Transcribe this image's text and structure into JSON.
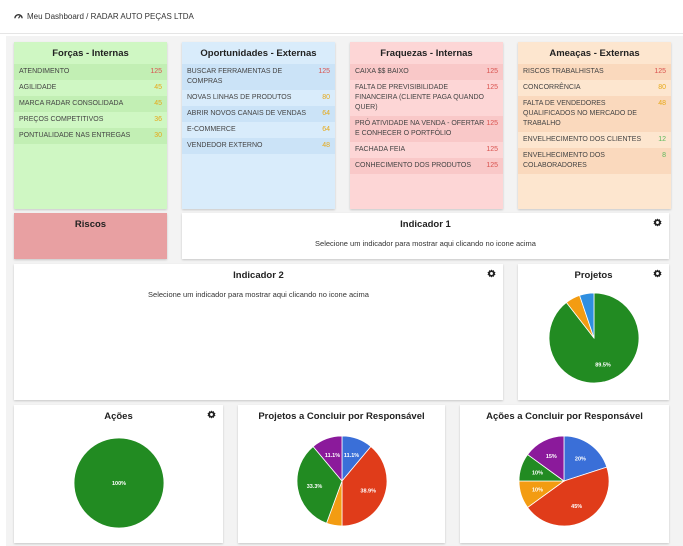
{
  "breadcrumb": {
    "text": "Meu Dashboard / RADAR AUTO PEÇAS LTDA"
  },
  "colors": {
    "low": "#e6a817",
    "mid": "#e6a817",
    "high": "#d9534f",
    "green": "#5cb85c",
    "pie_green": "#228b22",
    "pie_blue": "#3a6fd8",
    "pie_orange": "#f39c12",
    "pie_red": "#e03c1a",
    "pie_purple": "#8b1a9b",
    "pie_lightblue": "#2f8fe0"
  },
  "swot": {
    "strengths": {
      "title": "Forças - Internas",
      "items": [
        {
          "label": "ATENDIMENTO",
          "value": "125",
          "level": "high"
        },
        {
          "label": "AGILIDADE",
          "value": "45",
          "level": "mid"
        },
        {
          "label": "MARCA RADAR CONSOLIDADA",
          "value": "45",
          "level": "mid"
        },
        {
          "label": "PREÇOS COMPETITIVOS",
          "value": "36",
          "level": "low"
        },
        {
          "label": "PONTUALIDADE NAS ENTREGAS",
          "value": "30",
          "level": "low"
        }
      ]
    },
    "opportunities": {
      "title": "Oportunidades - Externas",
      "items": [
        {
          "label": "BUSCAR FERRAMENTAS DE COMPRAS",
          "value": "125",
          "level": "high"
        },
        {
          "label": "NOVAS LINHAS DE PRODUTOS",
          "value": "80",
          "level": "mid"
        },
        {
          "label": "ABRIR NOVOS CANAIS DE VENDAS",
          "value": "64",
          "level": "mid"
        },
        {
          "label": "E-COMMERCE",
          "value": "64",
          "level": "mid"
        },
        {
          "label": "VENDEDOR EXTERNO",
          "value": "48",
          "level": "mid"
        }
      ]
    },
    "weaknesses": {
      "title": "Fraquezas - Internas",
      "items": [
        {
          "label": "CAIXA $$ BAIXO",
          "value": "125",
          "level": "high"
        },
        {
          "label": "FALTA DE PREVISIBILIDADE FINANCEIRA (CLIENTE PAGA QUANDO QUER)",
          "value": "125",
          "level": "high"
        },
        {
          "label": "PRÓ ATIVIDADE NA VENDA - OFERTAR E CONHECER O PORTFÓLIO",
          "value": "125",
          "level": "high"
        },
        {
          "label": "FACHADA FEIA",
          "value": "125",
          "level": "high"
        },
        {
          "label": "CONHECIMENTO DOS PRODUTOS",
          "value": "125",
          "level": "high"
        }
      ]
    },
    "threats": {
      "title": "Ameaças - Externas",
      "items": [
        {
          "label": "RISCOS TRABALHISTAS",
          "value": "125",
          "level": "high"
        },
        {
          "label": "CONCORRÊNCIA",
          "value": "80",
          "level": "mid"
        },
        {
          "label": "FALTA DE VENDEDORES QUALIFICADOS NO MERCADO DE TRABALHO",
          "value": "48",
          "level": "mid"
        },
        {
          "label": "ENVELHECIMENTO DOS CLIENTES",
          "value": "12",
          "level": "green"
        },
        {
          "label": "ENVELHECIMENTO DOS COLABORADORES",
          "value": "8",
          "level": "green"
        }
      ]
    }
  },
  "riscos": {
    "title": "Riscos"
  },
  "indicador1": {
    "title": "Indicador 1",
    "message": "Selecione um indicador para mostrar aqui clicando no icone acima"
  },
  "indicador2": {
    "title": "Indicador 2",
    "message": "Selecione um indicador para mostrar aqui clicando no icone acima"
  },
  "projetos": {
    "title": "Projetos"
  },
  "acoes": {
    "title": "Ações"
  },
  "projetos_resp": {
    "title": "Projetos a Concluir por Responsável"
  },
  "acoes_resp": {
    "title": "Ações a Concluir por Responsável"
  },
  "chart_data": [
    {
      "type": "pie",
      "title": "Projetos",
      "slices": [
        {
          "value": 89.5,
          "label": "89.5%",
          "color": "#228b22"
        },
        {
          "value": 5.3,
          "label": "",
          "color": "#f39c12"
        },
        {
          "value": 5.2,
          "label": "",
          "color": "#2f8fe0"
        }
      ]
    },
    {
      "type": "pie",
      "title": "Ações",
      "slices": [
        {
          "value": 100,
          "label": "100%",
          "color": "#228b22"
        }
      ]
    },
    {
      "type": "pie",
      "title": "Projetos a Concluir por Responsável",
      "slices": [
        {
          "value": 11.1,
          "label": "11.1%",
          "color": "#3a6fd8"
        },
        {
          "value": 38.9,
          "label": "38.9%",
          "color": "#e03c1a"
        },
        {
          "value": 5.6,
          "label": "",
          "color": "#f39c12"
        },
        {
          "value": 33.3,
          "label": "33.3%",
          "color": "#228b22"
        },
        {
          "value": 11.1,
          "label": "11.1%",
          "color": "#8b1a9b"
        }
      ]
    },
    {
      "type": "pie",
      "title": "Ações a Concluir por Responsável",
      "slices": [
        {
          "value": 20,
          "label": "20%",
          "color": "#3a6fd8"
        },
        {
          "value": 45,
          "label": "45%",
          "color": "#e03c1a"
        },
        {
          "value": 10,
          "label": "10%",
          "color": "#f39c12"
        },
        {
          "value": 10,
          "label": "10%",
          "color": "#228b22"
        },
        {
          "value": 15,
          "label": "15%",
          "color": "#8b1a9b"
        }
      ]
    }
  ]
}
